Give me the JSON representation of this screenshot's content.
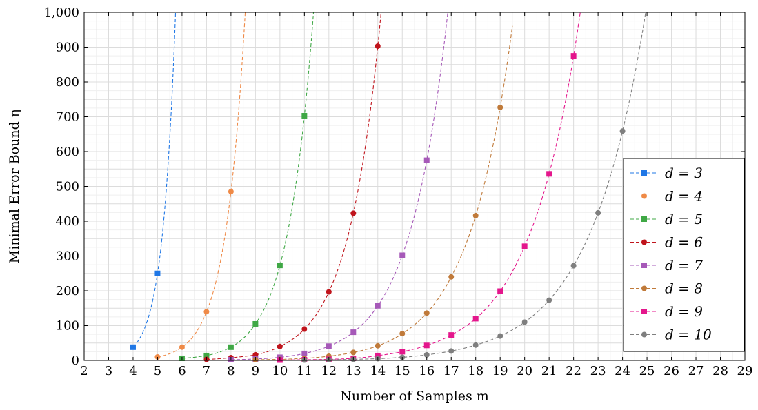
{
  "chart_data": {
    "type": "line",
    "xlabel": "Number of Samples m",
    "ylabel": "Minimal Error Bound η",
    "xlim": [
      2,
      29
    ],
    "ylim": [
      0,
      1000
    ],
    "xticks": [
      2,
      3,
      4,
      5,
      6,
      7,
      8,
      9,
      10,
      11,
      12,
      13,
      14,
      15,
      16,
      17,
      18,
      19,
      20,
      21,
      22,
      23,
      24,
      25,
      26,
      27,
      28,
      29
    ],
    "yticks": [
      "0",
      "100",
      "200",
      "300",
      "400",
      "500",
      "600",
      "700",
      "800",
      "900",
      "1,000"
    ],
    "grid": true,
    "minor_grid": true,
    "legend_position": "lower-right",
    "line_style": "dashed",
    "series": [
      {
        "name": "d = 3",
        "color": "#1f77e6",
        "marker": "square",
        "x": [
          4,
          5
        ],
        "y": [
          38,
          250
        ],
        "curve_x_end": 5.85
      },
      {
        "name": "d = 4",
        "color": "#ef8a47",
        "marker": "circle",
        "x": [
          5,
          6,
          7,
          8
        ],
        "y": [
          10,
          38,
          140,
          485
        ],
        "curve_x_end": 8.7
      },
      {
        "name": "d = 5",
        "color": "#3fa845",
        "marker": "square",
        "x": [
          6,
          7,
          8,
          9,
          10,
          11
        ],
        "y": [
          6,
          14,
          38,
          105,
          273,
          703
        ],
        "curve_x_end": 11.4
      },
      {
        "name": "d = 6",
        "color": "#c0141c",
        "marker": "circle",
        "x": [
          7,
          8,
          9,
          10,
          11,
          12,
          13,
          14
        ],
        "y": [
          3,
          8,
          16,
          40,
          90,
          197,
          423,
          903
        ],
        "curve_x_end": 14.15
      },
      {
        "name": "d = 7",
        "color": "#a659b8",
        "marker": "square",
        "x": [
          8,
          9,
          10,
          11,
          12,
          13,
          14,
          15,
          16
        ],
        "y": [
          2,
          4,
          9,
          20,
          41,
          81,
          157,
          302,
          575
        ],
        "curve_x_end": 16.9
      },
      {
        "name": "d = 8",
        "color": "#c07a3a",
        "marker": "circle",
        "x": [
          9,
          10,
          11,
          12,
          13,
          14,
          15,
          16,
          17,
          18,
          19
        ],
        "y": [
          2,
          3,
          6,
          12,
          23,
          42,
          77,
          136,
          240,
          416,
          727
        ],
        "curve_x_end": 19.5
      },
      {
        "name": "d = 9",
        "color": "#e4168c",
        "marker": "square",
        "x": [
          10,
          11,
          12,
          13,
          14,
          15,
          16,
          17,
          18,
          19,
          20,
          21,
          22
        ],
        "y": [
          1,
          2,
          3,
          6,
          14,
          25,
          43,
          73,
          120,
          199,
          328,
          536,
          875
        ],
        "curve_x_end": 22.3
      },
      {
        "name": "d = 10",
        "color": "#7f7f7f",
        "marker": "circle",
        "x": [
          11,
          12,
          13,
          14,
          15,
          16,
          17,
          18,
          19,
          20,
          21,
          22,
          23,
          24
        ],
        "y": [
          1,
          2,
          3,
          5,
          9,
          16,
          27,
          44,
          70,
          110,
          173,
          272,
          424,
          659
        ],
        "curve_x_end": 25.0
      }
    ]
  }
}
